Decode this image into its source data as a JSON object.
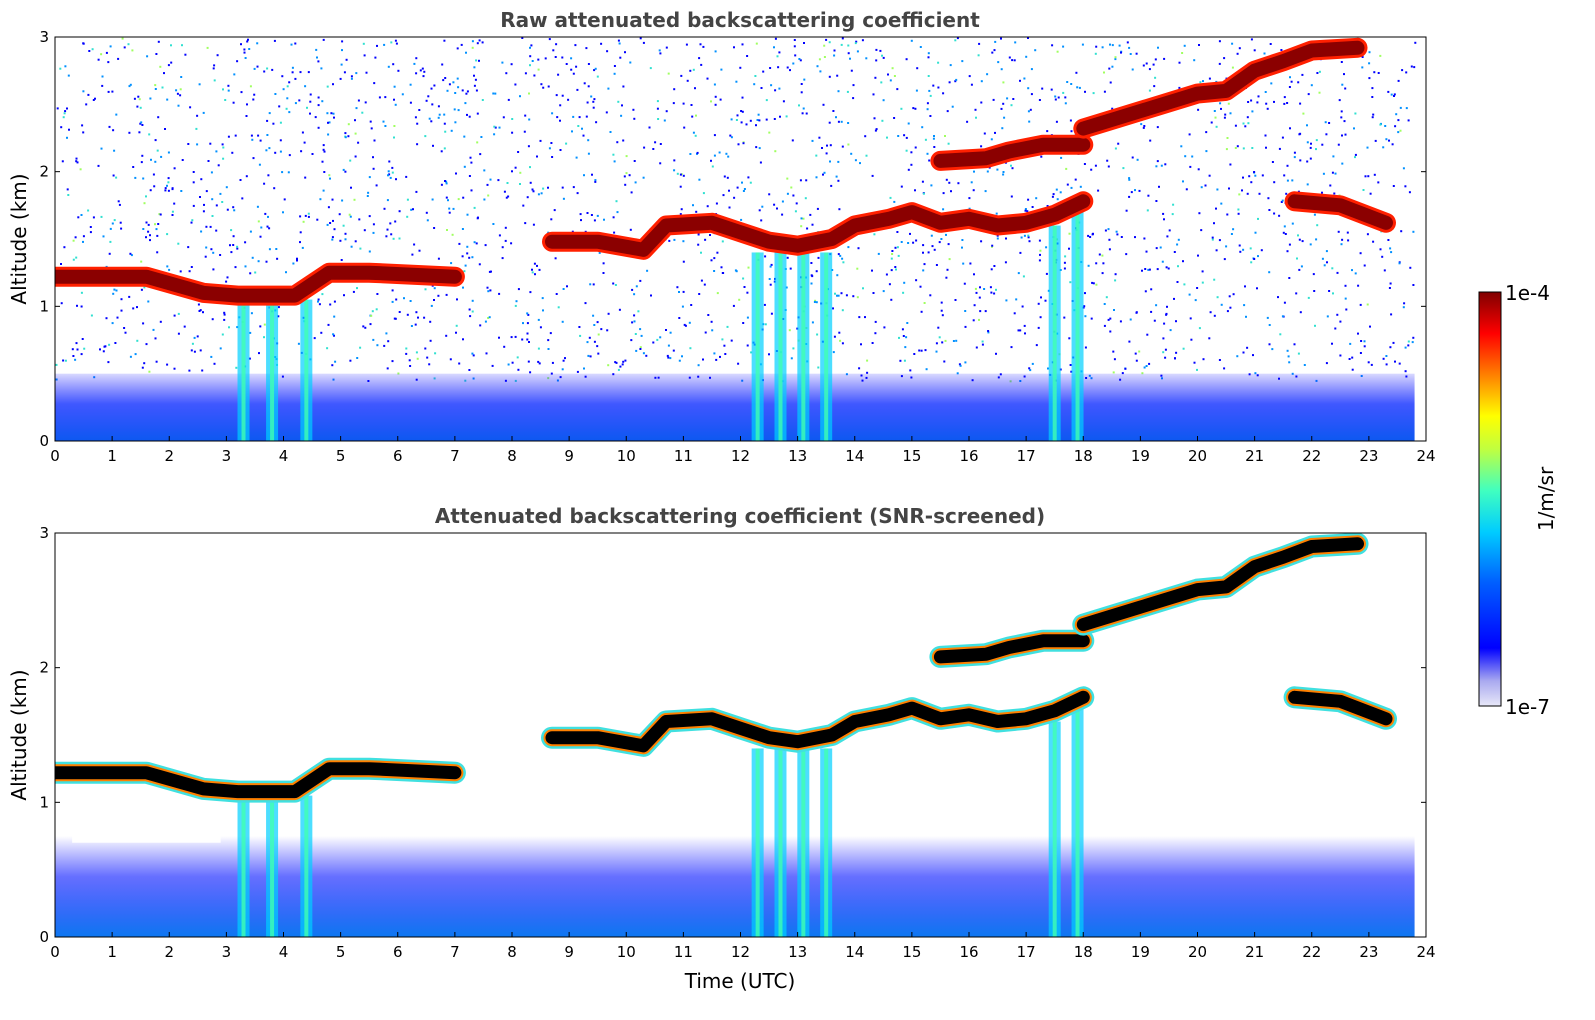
{
  "chart_data": [
    {
      "type": "heatmap",
      "title": "Raw attenuated backscattering coefficient",
      "ylabel": "Altitude (km)",
      "xlabel": "",
      "xlim": [
        0,
        24
      ],
      "ylim": [
        0,
        3
      ],
      "xticks": [
        "0",
        "1",
        "2",
        "3",
        "4",
        "5",
        "6",
        "7",
        "8",
        "9",
        "10",
        "11",
        "12",
        "13",
        "14",
        "15",
        "16",
        "17",
        "18",
        "19",
        "20",
        "21",
        "22",
        "23",
        "24"
      ],
      "yticks": [
        "0",
        "1",
        "2",
        "3"
      ],
      "screened": false,
      "data_end_time": 23.8,
      "cloud_layers": [
        {
          "time": [
            0,
            1.6,
            2.6,
            3.2,
            4.2,
            4.8,
            5.5,
            7.0
          ],
          "altitude": [
            1.22,
            1.22,
            1.1,
            1.08,
            1.08,
            1.25,
            1.25,
            1.22
          ]
        },
        {
          "time": [
            8.7,
            9.5,
            10.3,
            10.7,
            11.5,
            12.0,
            12.5,
            13.0,
            13.6,
            14.0,
            14.6,
            15.0,
            15.5,
            16.0,
            16.5,
            17.0,
            17.5,
            18.0
          ],
          "altitude": [
            1.48,
            1.48,
            1.42,
            1.6,
            1.62,
            1.55,
            1.48,
            1.45,
            1.5,
            1.6,
            1.65,
            1.7,
            1.62,
            1.65,
            1.6,
            1.62,
            1.68,
            1.78
          ]
        },
        {
          "time": [
            15.5,
            16.3,
            16.7,
            17.3,
            18.0
          ],
          "altitude": [
            2.08,
            2.1,
            2.15,
            2.2,
            2.2
          ]
        },
        {
          "time": [
            18.0,
            19.0,
            20.0,
            20.5,
            21.0,
            21.5,
            22.0,
            22.8
          ],
          "altitude": [
            2.32,
            2.45,
            2.58,
            2.6,
            2.75,
            2.82,
            2.9,
            2.92
          ]
        },
        {
          "time": [
            21.7,
            22.5,
            23.3
          ],
          "altitude": [
            1.78,
            1.75,
            1.62
          ]
        }
      ],
      "precipitation_streaks": [
        {
          "time": 3.3,
          "top": 1.05
        },
        {
          "time": 3.8,
          "top": 1.05
        },
        {
          "time": 4.4,
          "top": 1.05
        },
        {
          "time": 12.3,
          "top": 1.4
        },
        {
          "time": 12.7,
          "top": 1.4
        },
        {
          "time": 13.1,
          "top": 1.4
        },
        {
          "time": 13.5,
          "top": 1.4
        },
        {
          "time": 17.5,
          "top": 1.6
        },
        {
          "time": 17.9,
          "top": 1.7
        }
      ]
    },
    {
      "type": "heatmap",
      "title": "Attenuated backscattering coefficient (SNR-screened)",
      "ylabel": "Altitude (km)",
      "xlabel": "Time (UTC)",
      "xlim": [
        0,
        24
      ],
      "ylim": [
        0,
        3
      ],
      "xticks": [
        "0",
        "1",
        "2",
        "3",
        "4",
        "5",
        "6",
        "7",
        "8",
        "9",
        "10",
        "11",
        "12",
        "13",
        "14",
        "15",
        "16",
        "17",
        "18",
        "19",
        "20",
        "21",
        "22",
        "23",
        "24"
      ],
      "yticks": [
        "0",
        "1",
        "2",
        "3"
      ],
      "screened": true,
      "data_end_time": 23.8
    }
  ],
  "colorbar": {
    "label": "1/m/sr",
    "max_label": "1e-4",
    "min_label": "1e-7",
    "scale": "log",
    "colormap": "jet",
    "colors": [
      "#e8e8f8",
      "#0000ff",
      "#00a0ff",
      "#00ffff",
      "#80ff80",
      "#ffff00",
      "#ff8000",
      "#ff0000",
      "#800000"
    ]
  }
}
